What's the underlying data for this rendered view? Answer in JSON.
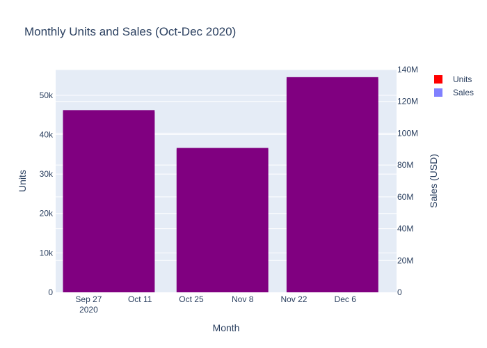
{
  "chart_data": {
    "type": "bar",
    "title": "Monthly Units and Sales (Oct-Dec 2020)",
    "xlabel": "Month",
    "ylabel": "Units",
    "y2label": "Sales (USD)",
    "x_ticks": [
      {
        "date": "2020-09-27",
        "label": "Sep 27",
        "sublabel": "2020"
      },
      {
        "date": "2020-10-11",
        "label": "Oct 11"
      },
      {
        "date": "2020-10-25",
        "label": "Oct 25"
      },
      {
        "date": "2020-11-08",
        "label": "Nov 8"
      },
      {
        "date": "2020-11-22",
        "label": "Nov 22"
      },
      {
        "date": "2020-12-06",
        "label": "Dec 6"
      }
    ],
    "xlim": [
      "2020-09-18",
      "2020-12-20"
    ],
    "ylim": [
      0,
      56500
    ],
    "y2lim": [
      0,
      140000000
    ],
    "y_ticks": [
      {
        "value": 0,
        "label": "0"
      },
      {
        "value": 10000,
        "label": "10k"
      },
      {
        "value": 20000,
        "label": "20k"
      },
      {
        "value": 30000,
        "label": "30k"
      },
      {
        "value": 40000,
        "label": "40k"
      },
      {
        "value": 50000,
        "label": "50k"
      }
    ],
    "y2_ticks": [
      {
        "value": 0,
        "label": "0"
      },
      {
        "value": 20000000,
        "label": "20M"
      },
      {
        "value": 40000000,
        "label": "40M"
      },
      {
        "value": 60000000,
        "label": "60M"
      },
      {
        "value": 80000000,
        "label": "80M"
      },
      {
        "value": 100000000,
        "label": "100M"
      },
      {
        "value": 120000000,
        "label": "120M"
      },
      {
        "value": 140000000,
        "label": "140M"
      }
    ],
    "series": [
      {
        "name": "Units",
        "axis": "y",
        "color": "#ff0000",
        "points": [
          {
            "x_start": "2020-09-20",
            "x_end": "2020-10-15",
            "value": 45800
          },
          {
            "x_start": "2020-10-21",
            "x_end": "2020-11-15",
            "value": 36300
          },
          {
            "x_start": "2020-11-20",
            "x_end": "2020-12-15",
            "value": 54100
          }
        ]
      },
      {
        "name": "Sales",
        "axis": "y2",
        "color": "#8080ff",
        "points": [
          {
            "x_start": "2020-09-20",
            "x_end": "2020-10-15",
            "value": 114500000
          },
          {
            "x_start": "2020-10-21",
            "x_end": "2020-11-15",
            "value": 90750000
          },
          {
            "x_start": "2020-11-20",
            "x_end": "2020-12-15",
            "value": 135250000
          }
        ]
      }
    ],
    "overlap_color": "#800080",
    "grid": true,
    "legend": "top-right"
  }
}
